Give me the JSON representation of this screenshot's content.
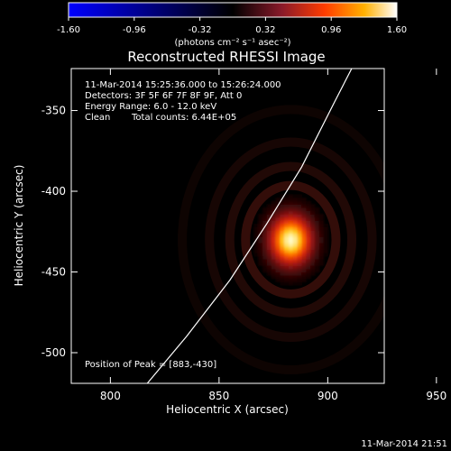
{
  "colorbar": {
    "ticks": [
      "-1.60",
      "-0.96",
      "-0.32",
      "0.32",
      "0.96",
      "1.60"
    ],
    "tick_values": [
      -1.6,
      -0.96,
      -0.32,
      0.32,
      0.96,
      1.6
    ],
    "range": [
      -1.6,
      1.6
    ],
    "unit_label": "(photons cm⁻² s⁻¹ asec⁻²)"
  },
  "chart_data": {
    "type": "heatmap",
    "title": "Reconstructed RHESSI Image",
    "xlabel": "Heliocentric X (arcsec)",
    "ylabel": "Heliocentric Y (arcsec)",
    "xlim": [
      782,
      926
    ],
    "ylim": [
      -519,
      -324
    ],
    "x_ticks": [
      800,
      850,
      900,
      950
    ],
    "y_ticks": [
      -350,
      -400,
      -450,
      -500
    ],
    "peak": {
      "x": 883,
      "y": -430,
      "value": 1.6
    },
    "source": {
      "sigma_x": 6.5,
      "sigma_y": 10.5
    },
    "limb_curve": {
      "x": [
        817,
        835,
        855,
        872,
        888,
        903,
        911
      ],
      "y": [
        -519,
        -490,
        -455,
        -420,
        -385,
        -345,
        -324
      ]
    }
  },
  "info": {
    "time_range": "11-Mar-2014 15:25:36.000 to 15:26:24.000",
    "detectors": "Detectors: 3F 5F 6F 7F 8F 9F, Att 0",
    "energy": "Energy Range: 6.0 - 12.0 keV",
    "method": "Clean",
    "counts": "Total counts: 6.44E+05",
    "peak_text": "Position of Peak = [883,-430]"
  },
  "timestamp": "11-Mar-2014 21:51"
}
